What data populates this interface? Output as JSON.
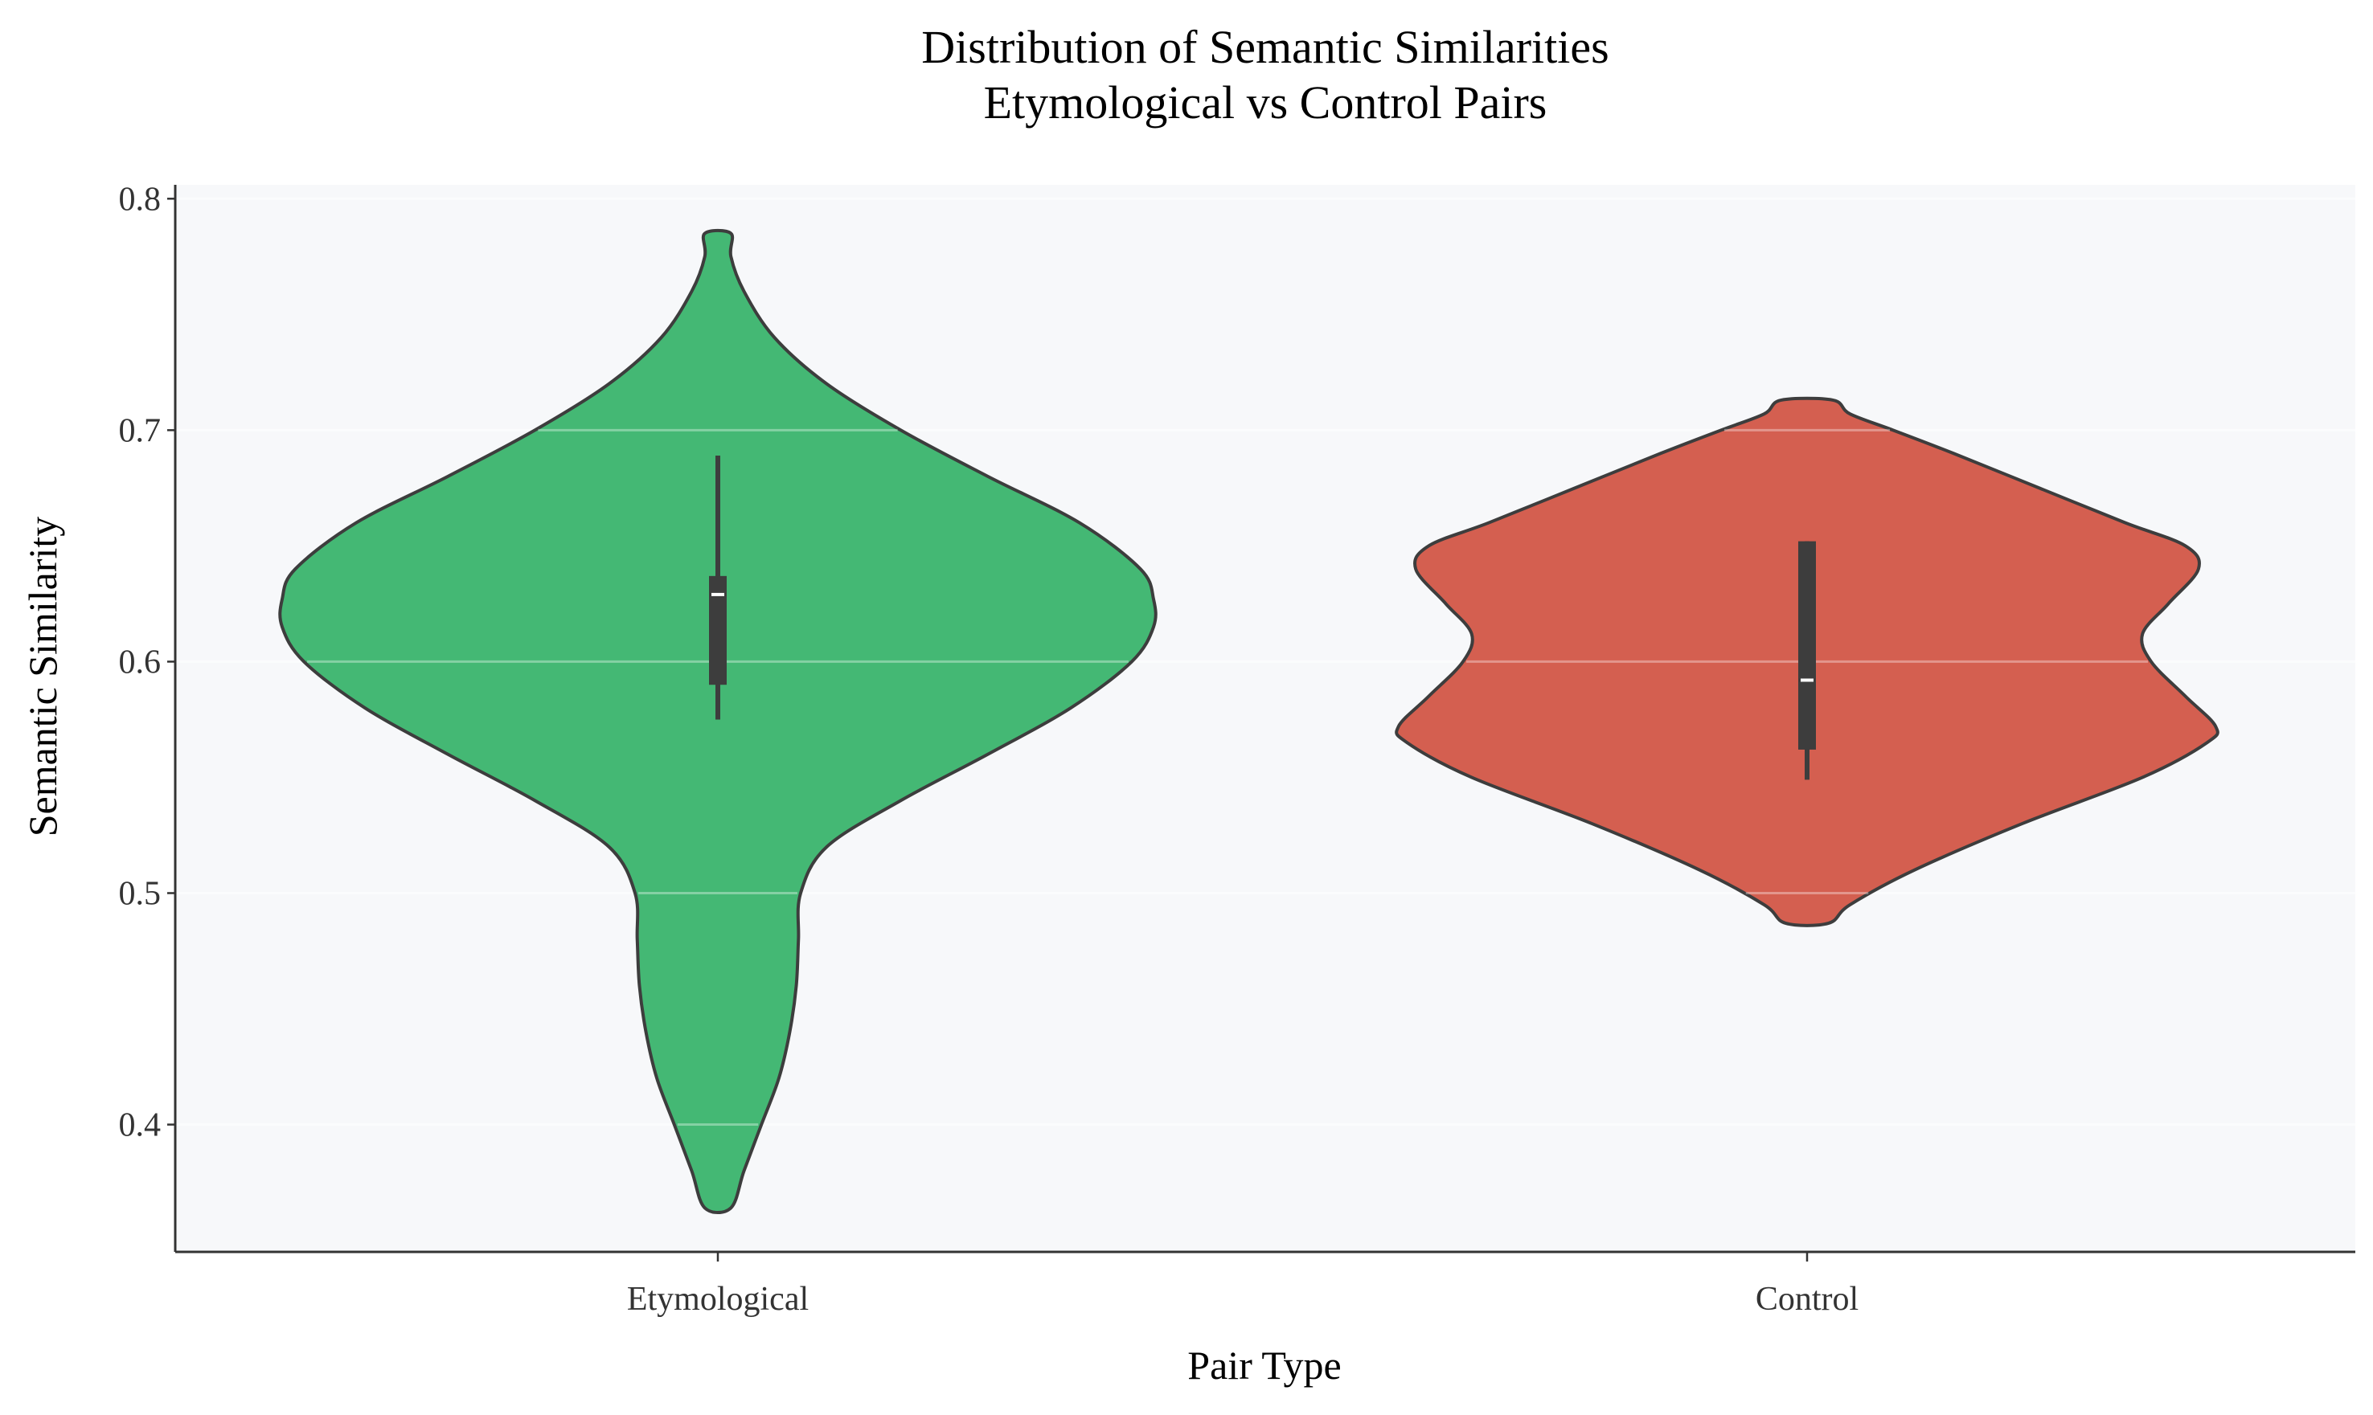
{
  "chart_data": {
    "type": "violin",
    "title": [
      "Distribution of Semantic Similarities",
      "Etymological vs Control Pairs"
    ],
    "xlabel": "Pair Type",
    "ylabel": "Semantic Similarity",
    "ylim": [
      0.345,
      0.806
    ],
    "yticks": [
      {
        "value": 0.4,
        "label": "0.4"
      },
      {
        "value": 0.5,
        "label": "0.5"
      },
      {
        "value": 0.6,
        "label": "0.6"
      },
      {
        "value": 0.7,
        "label": "0.7"
      },
      {
        "value": 0.8,
        "label": "0.8"
      }
    ],
    "grid": {
      "y": true,
      "x": false
    },
    "background_color": "#f7f8fa",
    "categories": [
      "Etymological",
      "Control"
    ],
    "series": [
      {
        "category": "Etymological",
        "color": "#44b874",
        "range": [
          0.364,
          0.785
        ],
        "whisker": [
          0.575,
          0.689
        ],
        "q1": 0.59,
        "q3": 0.637,
        "median": 0.629,
        "density_profile": [
          [
            0.364,
            0.03
          ],
          [
            0.38,
            0.06
          ],
          [
            0.4,
            0.1
          ],
          [
            0.42,
            0.14
          ],
          [
            0.44,
            0.165
          ],
          [
            0.46,
            0.18
          ],
          [
            0.48,
            0.185
          ],
          [
            0.5,
            0.19
          ],
          [
            0.52,
            0.25
          ],
          [
            0.54,
            0.42
          ],
          [
            0.56,
            0.62
          ],
          [
            0.58,
            0.81
          ],
          [
            0.6,
            0.95
          ],
          [
            0.615,
            1.0
          ],
          [
            0.627,
            1.0
          ],
          [
            0.64,
            0.97
          ],
          [
            0.66,
            0.83
          ],
          [
            0.68,
            0.62
          ],
          [
            0.7,
            0.42
          ],
          [
            0.72,
            0.25
          ],
          [
            0.74,
            0.13
          ],
          [
            0.76,
            0.06
          ],
          [
            0.775,
            0.03
          ],
          [
            0.785,
            0.03
          ]
        ]
      },
      {
        "category": "Control",
        "color": "#d45f50",
        "range": [
          0.487,
          0.713
        ],
        "whisker": [
          0.549,
          0.652
        ],
        "q1": 0.562,
        "q3": 0.652,
        "median": 0.592,
        "density_profile": [
          [
            0.487,
            0.05
          ],
          [
            0.495,
            0.1
          ],
          [
            0.51,
            0.25
          ],
          [
            0.53,
            0.5
          ],
          [
            0.55,
            0.78
          ],
          [
            0.565,
            0.93
          ],
          [
            0.572,
            0.95
          ],
          [
            0.585,
            0.88
          ],
          [
            0.6,
            0.8
          ],
          [
            0.612,
            0.78
          ],
          [
            0.625,
            0.84
          ],
          [
            0.64,
            0.91
          ],
          [
            0.65,
            0.88
          ],
          [
            0.66,
            0.74
          ],
          [
            0.675,
            0.54
          ],
          [
            0.69,
            0.34
          ],
          [
            0.7,
            0.2
          ],
          [
            0.707,
            0.1
          ],
          [
            0.713,
            0.06
          ]
        ]
      }
    ]
  }
}
